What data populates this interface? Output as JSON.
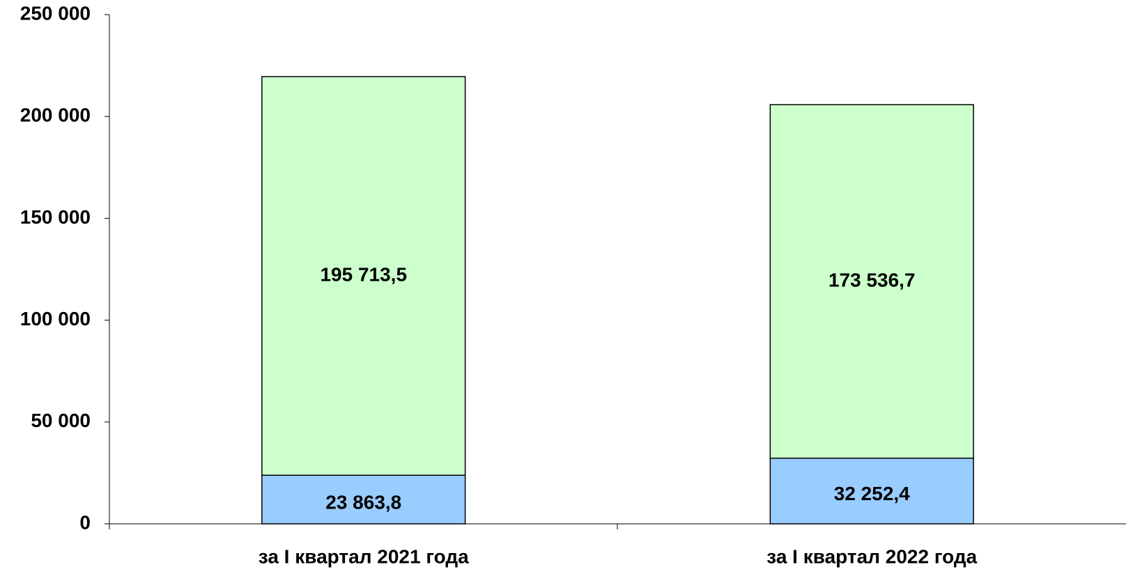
{
  "chart_data": {
    "type": "stacked_bar",
    "categories": [
      "за I квартал 2021 года",
      "за I квартал 2022 года"
    ],
    "series": [
      {
        "color": "#99ccff",
        "values": [
          23863.8,
          32252.4
        ],
        "value_labels": [
          "23 863,8",
          "32 252,4"
        ]
      },
      {
        "color": "#ccffcc",
        "values": [
          195713.5,
          173536.7
        ],
        "value_labels": [
          "195 713,5",
          "173 536,7"
        ]
      }
    ],
    "ylim": [
      0,
      250000
    ],
    "yticks": [
      0,
      {
        "value": 50000,
        "label": "50 000"
      },
      {
        "value": 100000,
        "label": "100 000"
      },
      {
        "value": 150000,
        "label": "150 000"
      },
      {
        "value": 200000,
        "label": "200 000"
      },
      {
        "value": 250000,
        "label": "250 000"
      }
    ],
    "grid": false
  }
}
